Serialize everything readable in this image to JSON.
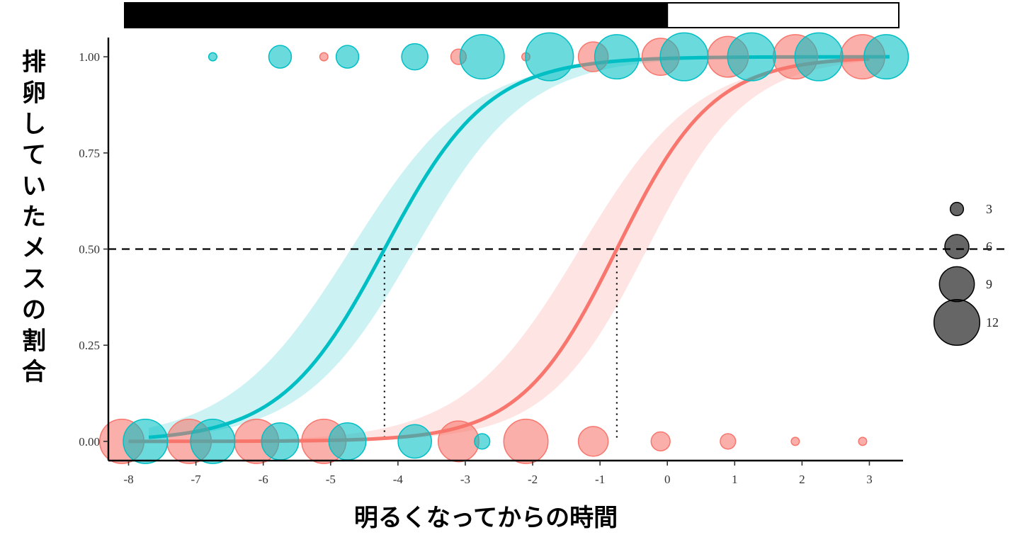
{
  "chart_data": {
    "type": "scatter",
    "title": "",
    "xlabel": "明るくなってからの時間",
    "ylabel": "排卵していたメスの割合",
    "xlim": [
      -8.3,
      3.5
    ],
    "ylim": [
      -0.05,
      1.05
    ],
    "x_ticks": [
      "-8",
      "-7",
      "-6",
      "-5",
      "-4",
      "-3",
      "-2",
      "-1",
      "0",
      "1",
      "2",
      "3"
    ],
    "y_ticks": [
      "0.00",
      "0.25",
      "0.50",
      "0.75",
      "1.00"
    ],
    "light_bar": {
      "dark_from": -8.3,
      "dark_to": 0,
      "light_from": 0,
      "light_to": 3.5
    },
    "reference_line": {
      "y": 0.5,
      "style": "dashed"
    },
    "size_legend": {
      "title": "",
      "values": [
        3,
        6,
        9,
        12
      ]
    },
    "series": [
      {
        "name": "red",
        "color": "#F8766D",
        "fit": {
          "model": "logistic",
          "x50": -0.75,
          "slope": 1.4,
          "x_range": [
            -8,
            3
          ]
        },
        "ci": {
          "lower_x50": -0.3,
          "upper_x50": -1.3,
          "lower_slope": 1.35,
          "upper_slope": 1.15
        },
        "x50_marker": -0.75,
        "points": [
          {
            "x": -8.1,
            "y": 0,
            "n": 11
          },
          {
            "x": -7.1,
            "y": 0,
            "n": 11
          },
          {
            "x": -6.1,
            "y": 0,
            "n": 11
          },
          {
            "x": -5.1,
            "y": 0,
            "n": 11
          },
          {
            "x": -3.1,
            "y": 0,
            "n": 10
          },
          {
            "x": -2.1,
            "y": 0,
            "n": 11
          },
          {
            "x": -1.1,
            "y": 0,
            "n": 7
          },
          {
            "x": -0.1,
            "y": 0,
            "n": 4
          },
          {
            "x": 0.9,
            "y": 0,
            "n": 3
          },
          {
            "x": 1.9,
            "y": 0,
            "n": 1
          },
          {
            "x": 2.9,
            "y": 0,
            "n": 1
          },
          {
            "x": -5.1,
            "y": 1,
            "n": 1
          },
          {
            "x": -3.1,
            "y": 1,
            "n": 3
          },
          {
            "x": -2.1,
            "y": 1,
            "n": 1
          },
          {
            "x": -1.1,
            "y": 1,
            "n": 7
          },
          {
            "x": -0.1,
            "y": 1,
            "n": 9
          },
          {
            "x": 0.9,
            "y": 1,
            "n": 10
          },
          {
            "x": 1.9,
            "y": 1,
            "n": 11
          },
          {
            "x": 2.9,
            "y": 1,
            "n": 11
          }
        ]
      },
      {
        "name": "cyan",
        "color": "#00BFC4",
        "fit": {
          "model": "logistic",
          "x50": -4.2,
          "slope": 1.3,
          "x_range": [
            -7.7,
            3.3
          ]
        },
        "ci": {
          "lower_x50": -3.75,
          "upper_x50": -4.7,
          "lower_slope": 1.2,
          "upper_slope": 1.1
        },
        "x50_marker": -4.2,
        "points": [
          {
            "x": -7.75,
            "y": 0,
            "n": 11
          },
          {
            "x": -6.75,
            "y": 0,
            "n": 11
          },
          {
            "x": -5.75,
            "y": 0,
            "n": 9
          },
          {
            "x": -4.75,
            "y": 0,
            "n": 9
          },
          {
            "x": -3.75,
            "y": 0,
            "n": 8
          },
          {
            "x": -2.75,
            "y": 0,
            "n": 3
          },
          {
            "x": -6.75,
            "y": 1,
            "n": 1
          },
          {
            "x": -5.75,
            "y": 1,
            "n": 5
          },
          {
            "x": -4.75,
            "y": 1,
            "n": 5
          },
          {
            "x": -3.75,
            "y": 1,
            "n": 6
          },
          {
            "x": -2.75,
            "y": 1,
            "n": 11
          },
          {
            "x": -1.75,
            "y": 1,
            "n": 12
          },
          {
            "x": -0.75,
            "y": 1,
            "n": 11
          },
          {
            "x": 0.25,
            "y": 1,
            "n": 12
          },
          {
            "x": 1.25,
            "y": 1,
            "n": 12
          },
          {
            "x": 2.25,
            "y": 1,
            "n": 12
          },
          {
            "x": 3.25,
            "y": 1,
            "n": 11
          }
        ]
      }
    ]
  }
}
